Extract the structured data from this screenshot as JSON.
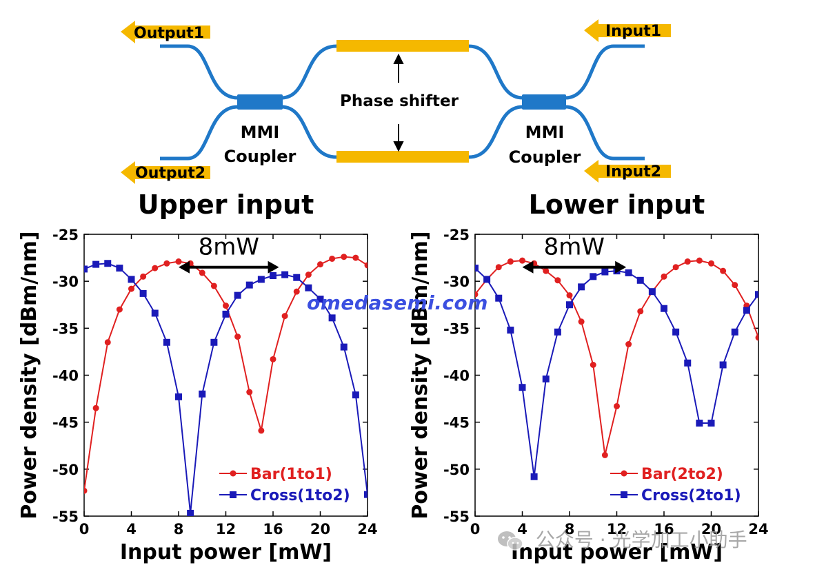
{
  "diagram": {
    "output1": "Output1",
    "output2": "Output2",
    "input1": "Input1",
    "input2": "Input2",
    "mmi_left_line1": "MMI",
    "mmi_left_line2": "Coupler",
    "mmi_right_line1": "MMI",
    "mmi_right_line2": "Coupler",
    "phase_shifter": "Phase shifter",
    "colors": {
      "waveguide": "#1f78c8",
      "arm": "#f5b800",
      "arrow": "#f5b800"
    }
  },
  "watermark": "omedasemi.com",
  "wechat_text": "公众号 · 光学加工小助手",
  "chart_data": [
    {
      "type": "line",
      "title": "Upper input",
      "annotation": "8mW",
      "xlabel": "Input power [mW]",
      "ylabel": "Power density [dBm/nm]",
      "xlim": [
        0,
        24
      ],
      "ylim": [
        -55,
        -25
      ],
      "xticks": [
        0,
        4,
        8,
        12,
        16,
        20,
        24
      ],
      "yticks": [
        -25,
        -30,
        -35,
        -40,
        -45,
        -50,
        -55
      ],
      "legend_position": "bottom-right",
      "span_arrow": [
        8,
        16.5,
        -28.5
      ],
      "series": [
        {
          "name": "Bar(1to1)",
          "color": "#e02020",
          "marker": "circle",
          "x": [
            0,
            1,
            2,
            3,
            4,
            5,
            6,
            7,
            8,
            9,
            10,
            11,
            12,
            13,
            14,
            15,
            16,
            17,
            18,
            19,
            20,
            21,
            22,
            23,
            24
          ],
          "y": [
            -52.3,
            -43.5,
            -36.5,
            -33,
            -30.8,
            -29.5,
            -28.6,
            -28.1,
            -27.9,
            -28.1,
            -29.1,
            -30.5,
            -32.6,
            -35.9,
            -41.8,
            -45.9,
            -38.3,
            -33.7,
            -31.1,
            -29.3,
            -28.2,
            -27.6,
            -27.4,
            -27.5,
            -28.3
          ]
        },
        {
          "name": "Cross(1to2)",
          "color": "#1a1ab8",
          "marker": "square",
          "x": [
            0,
            1,
            2,
            3,
            4,
            5,
            6,
            7,
            8,
            9,
            10,
            11,
            12,
            13,
            14,
            15,
            16,
            17,
            18,
            19,
            20,
            21,
            22,
            23,
            24
          ],
          "y": [
            -28.7,
            -28.2,
            -28.1,
            -28.6,
            -29.8,
            -31.3,
            -33.4,
            -36.5,
            -42.3,
            -54.7,
            -42,
            -36.5,
            -33.5,
            -31.5,
            -30.4,
            -29.8,
            -29.4,
            -29.3,
            -29.6,
            -30.7,
            -31.9,
            -33.9,
            -37,
            -42.1,
            -52.7
          ]
        }
      ]
    },
    {
      "type": "line",
      "title": "Lower input",
      "annotation": "8mW",
      "xlabel": "Input power [mW]",
      "ylabel": "Power density [dBm/nm]",
      "xlim": [
        0,
        24
      ],
      "ylim": [
        -55,
        -25
      ],
      "xticks": [
        0,
        4,
        8,
        12,
        16,
        20,
        24
      ],
      "yticks": [
        -25,
        -30,
        -35,
        -40,
        -45,
        -50,
        -55
      ],
      "legend_position": "bottom-right",
      "span_arrow": [
        4,
        12.8,
        -28.5
      ],
      "series": [
        {
          "name": "Bar(2to2)",
          "color": "#e02020",
          "marker": "circle",
          "x": [
            0,
            1,
            2,
            3,
            4,
            5,
            6,
            7,
            8,
            9,
            10,
            11,
            12,
            13,
            14,
            15,
            16,
            17,
            18,
            19,
            20,
            21,
            22,
            23,
            24
          ],
          "y": [
            -31.4,
            -29.8,
            -28.5,
            -27.9,
            -27.8,
            -28.1,
            -28.9,
            -29.9,
            -31.5,
            -34.3,
            -38.9,
            -48.5,
            -43.3,
            -36.7,
            -33.2,
            -31.1,
            -29.5,
            -28.5,
            -27.9,
            -27.8,
            -28.1,
            -28.9,
            -30.4,
            -32.6,
            -36
          ]
        },
        {
          "name": "Cross(2to1)",
          "color": "#1a1ab8",
          "marker": "square",
          "x": [
            0,
            1,
            2,
            3,
            4,
            5,
            6,
            7,
            8,
            9,
            10,
            11,
            12,
            13,
            14,
            15,
            16,
            17,
            18,
            19,
            20,
            21,
            22,
            23,
            24
          ],
          "y": [
            -28.6,
            -29.8,
            -31.8,
            -35.2,
            -41.3,
            -50.8,
            -40.4,
            -35.4,
            -32.5,
            -30.6,
            -29.5,
            -29,
            -28.9,
            -29.1,
            -29.9,
            -31.1,
            -32.9,
            -35.4,
            -38.7,
            -45.1,
            -45.1,
            -38.9,
            -35.4,
            -33.1,
            -31.4
          ]
        }
      ]
    }
  ]
}
